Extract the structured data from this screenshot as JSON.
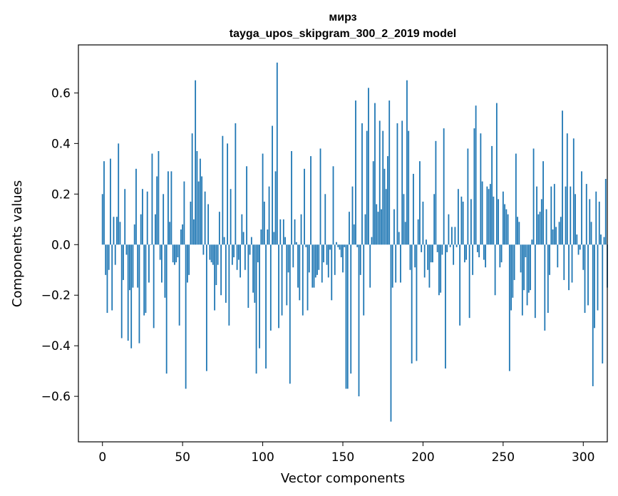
{
  "chart_data": {
    "type": "bar",
    "title": "мирз",
    "subtitle": "tayga_upos_skipgram_300_2_2019 model",
    "xlabel": "Vector components",
    "ylabel": "Components values",
    "xlim": [
      -15,
      315
    ],
    "ylim": [
      -0.78,
      0.79
    ],
    "xticks": [
      0,
      50,
      100,
      150,
      200,
      250,
      300
    ],
    "xtick_labels": [
      "0",
      "50",
      "100",
      "150",
      "200",
      "250",
      "300"
    ],
    "yticks": [
      -0.6,
      -0.4,
      -0.2,
      0.0,
      0.2,
      0.4,
      0.6
    ],
    "ytick_labels": [
      "−0.6",
      "−0.4",
      "−0.2",
      "0.0",
      "0.2",
      "0.4",
      "0.6"
    ],
    "grid": false,
    "bar_color": "#1f77b4",
    "values": [
      0.2,
      0.33,
      -0.12,
      -0.27,
      -0.1,
      0.34,
      -0.26,
      0.11,
      -0.08,
      0.11,
      0.4,
      0.09,
      -0.37,
      -0.14,
      0.22,
      -0.04,
      -0.38,
      -0.18,
      -0.41,
      -0.17,
      0.08,
      0.3,
      -0.17,
      -0.39,
      0.12,
      0.22,
      -0.28,
      -0.27,
      0.21,
      -0.15,
      0.0,
      0.36,
      -0.33,
      0.12,
      0.27,
      0.37,
      -0.06,
      -0.15,
      0.2,
      -0.21,
      -0.51,
      0.29,
      0.09,
      0.29,
      -0.07,
      -0.08,
      -0.07,
      -0.05,
      -0.32,
      0.06,
      0.08,
      0.25,
      -0.57,
      -0.15,
      -0.12,
      0.17,
      0.44,
      0.1,
      0.65,
      0.37,
      0.25,
      0.34,
      0.27,
      -0.04,
      0.21,
      -0.5,
      0.16,
      -0.06,
      -0.07,
      -0.08,
      -0.26,
      -0.16,
      -0.08,
      0.13,
      -0.2,
      0.43,
      0.03,
      -0.23,
      0.4,
      -0.32,
      0.22,
      -0.08,
      -0.05,
      0.48,
      -0.1,
      -0.06,
      -0.13,
      0.12,
      0.05,
      -0.1,
      0.31,
      -0.25,
      -0.04,
      0.03,
      -0.19,
      -0.23,
      -0.51,
      -0.07,
      -0.41,
      0.06,
      0.36,
      0.17,
      -0.49,
      0.06,
      0.23,
      -0.34,
      0.47,
      0.05,
      0.29,
      0.72,
      -0.33,
      0.1,
      -0.28,
      0.1,
      0.03,
      -0.24,
      -0.11,
      -0.55,
      0.37,
      -0.09,
      0.1,
      0.01,
      -0.17,
      -0.22,
      0.12,
      -0.28,
      0.3,
      -0.01,
      -0.26,
      -0.11,
      0.35,
      -0.17,
      -0.17,
      -0.13,
      -0.12,
      -0.1,
      0.38,
      -0.15,
      -0.07,
      0.2,
      -0.08,
      -0.13,
      -0.02,
      -0.22,
      0.31,
      -0.12,
      0.01,
      -0.01,
      -0.02,
      -0.05,
      -0.11,
      -0.01,
      -0.57,
      -0.57,
      0.13,
      -0.51,
      0.23,
      0.08,
      0.57,
      -0.01,
      -0.6,
      -0.12,
      0.48,
      -0.28,
      0.12,
      0.45,
      0.62,
      -0.17,
      0.03,
      0.33,
      0.56,
      0.16,
      0.13,
      0.49,
      0.14,
      0.45,
      0.3,
      0.22,
      0.35,
      0.57,
      -0.7,
      -0.17,
      0.14,
      -0.15,
      0.48,
      0.05,
      -0.15,
      0.49,
      0.2,
      0.09,
      0.65,
      0.45,
      -0.1,
      -0.47,
      0.28,
      -0.09,
      -0.46,
      0.1,
      0.33,
      -0.03,
      0.17,
      -0.13,
      0.02,
      -0.1,
      -0.17,
      -0.07,
      -0.07,
      0.2,
      0.41,
      -0.03,
      -0.2,
      -0.19,
      -0.04,
      0.46,
      -0.49,
      -0.03,
      0.12,
      -0.01,
      0.07,
      -0.08,
      0.07,
      -0.01,
      0.22,
      -0.32,
      0.19,
      0.17,
      -0.07,
      -0.06,
      0.38,
      -0.29,
      0.18,
      -0.12,
      0.46,
      0.55,
      -0.03,
      -0.05,
      0.44,
      0.25,
      -0.06,
      -0.09,
      0.23,
      0.22,
      0.24,
      0.39,
      0.19,
      -0.2,
      0.56,
      0.18,
      -0.09,
      -0.07,
      0.21,
      0.16,
      0.14,
      0.12,
      -0.5,
      -0.26,
      -0.21,
      -0.14,
      0.36,
      0.11,
      0.09,
      -0.11,
      -0.28,
      -0.18,
      -0.05,
      -0.24,
      -0.19,
      -0.18,
      0.02,
      0.38,
      -0.29,
      0.23,
      0.12,
      0.13,
      0.18,
      0.33,
      -0.34,
      0.14,
      -0.27,
      -0.12,
      0.23,
      0.06,
      0.24,
      0.07,
      -0.09,
      0.09,
      0.11,
      0.53,
      -0.14,
      0.23,
      0.44,
      -0.18,
      0.23,
      -0.15,
      0.42,
      0.2,
      0.04,
      -0.04,
      -0.02,
      0.29,
      -0.1,
      -0.27,
      0.24,
      -0.24,
      0.18,
      0.09,
      -0.56,
      -0.33,
      0.21,
      -0.26,
      0.17,
      0.04,
      -0.47,
      0.03,
      0.26,
      -0.17
    ]
  }
}
